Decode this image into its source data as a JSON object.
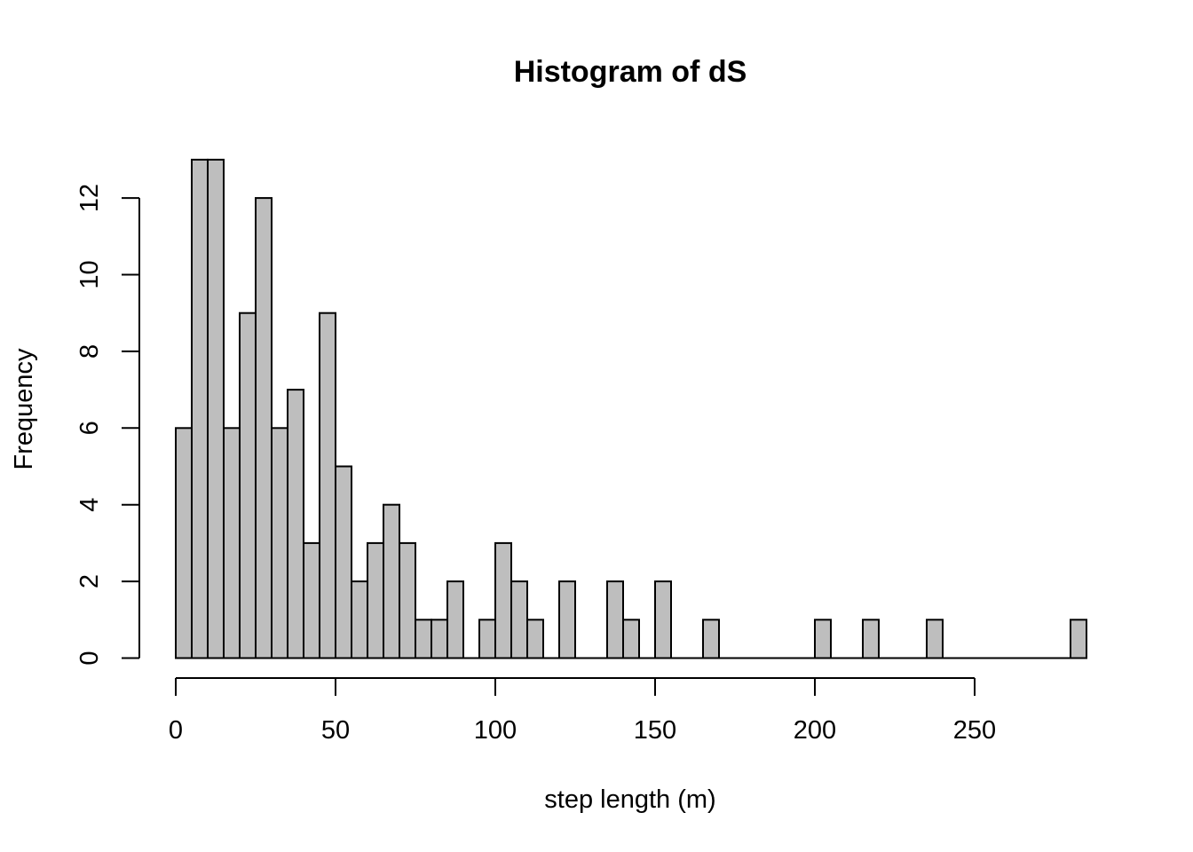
{
  "chart_data": {
    "type": "bar",
    "title": "Histogram of dS",
    "xlabel": "step length (m)",
    "ylabel": "Frequency",
    "bin_width": 5,
    "bin_start": 0,
    "values": [
      6,
      13,
      13,
      6,
      9,
      12,
      6,
      7,
      3,
      9,
      5,
      2,
      3,
      4,
      3,
      1,
      1,
      2,
      0,
      1,
      3,
      2,
      1,
      0,
      2,
      0,
      0,
      2,
      1,
      0,
      2,
      0,
      0,
      1,
      0,
      0,
      0,
      0,
      0,
      0,
      1,
      0,
      0,
      1,
      0,
      0,
      0,
      1,
      0,
      0,
      0,
      0,
      0,
      0,
      0,
      0,
      1
    ],
    "xlim": [
      0,
      285
    ],
    "ylim": [
      0,
      13
    ],
    "x_ticks": [
      0,
      50,
      100,
      150,
      200,
      250
    ],
    "y_ticks": [
      0,
      2,
      4,
      6,
      8,
      10,
      12
    ],
    "grid": false,
    "colors": {
      "bar_fill": "#bebebe",
      "bar_stroke": "#000000"
    }
  }
}
